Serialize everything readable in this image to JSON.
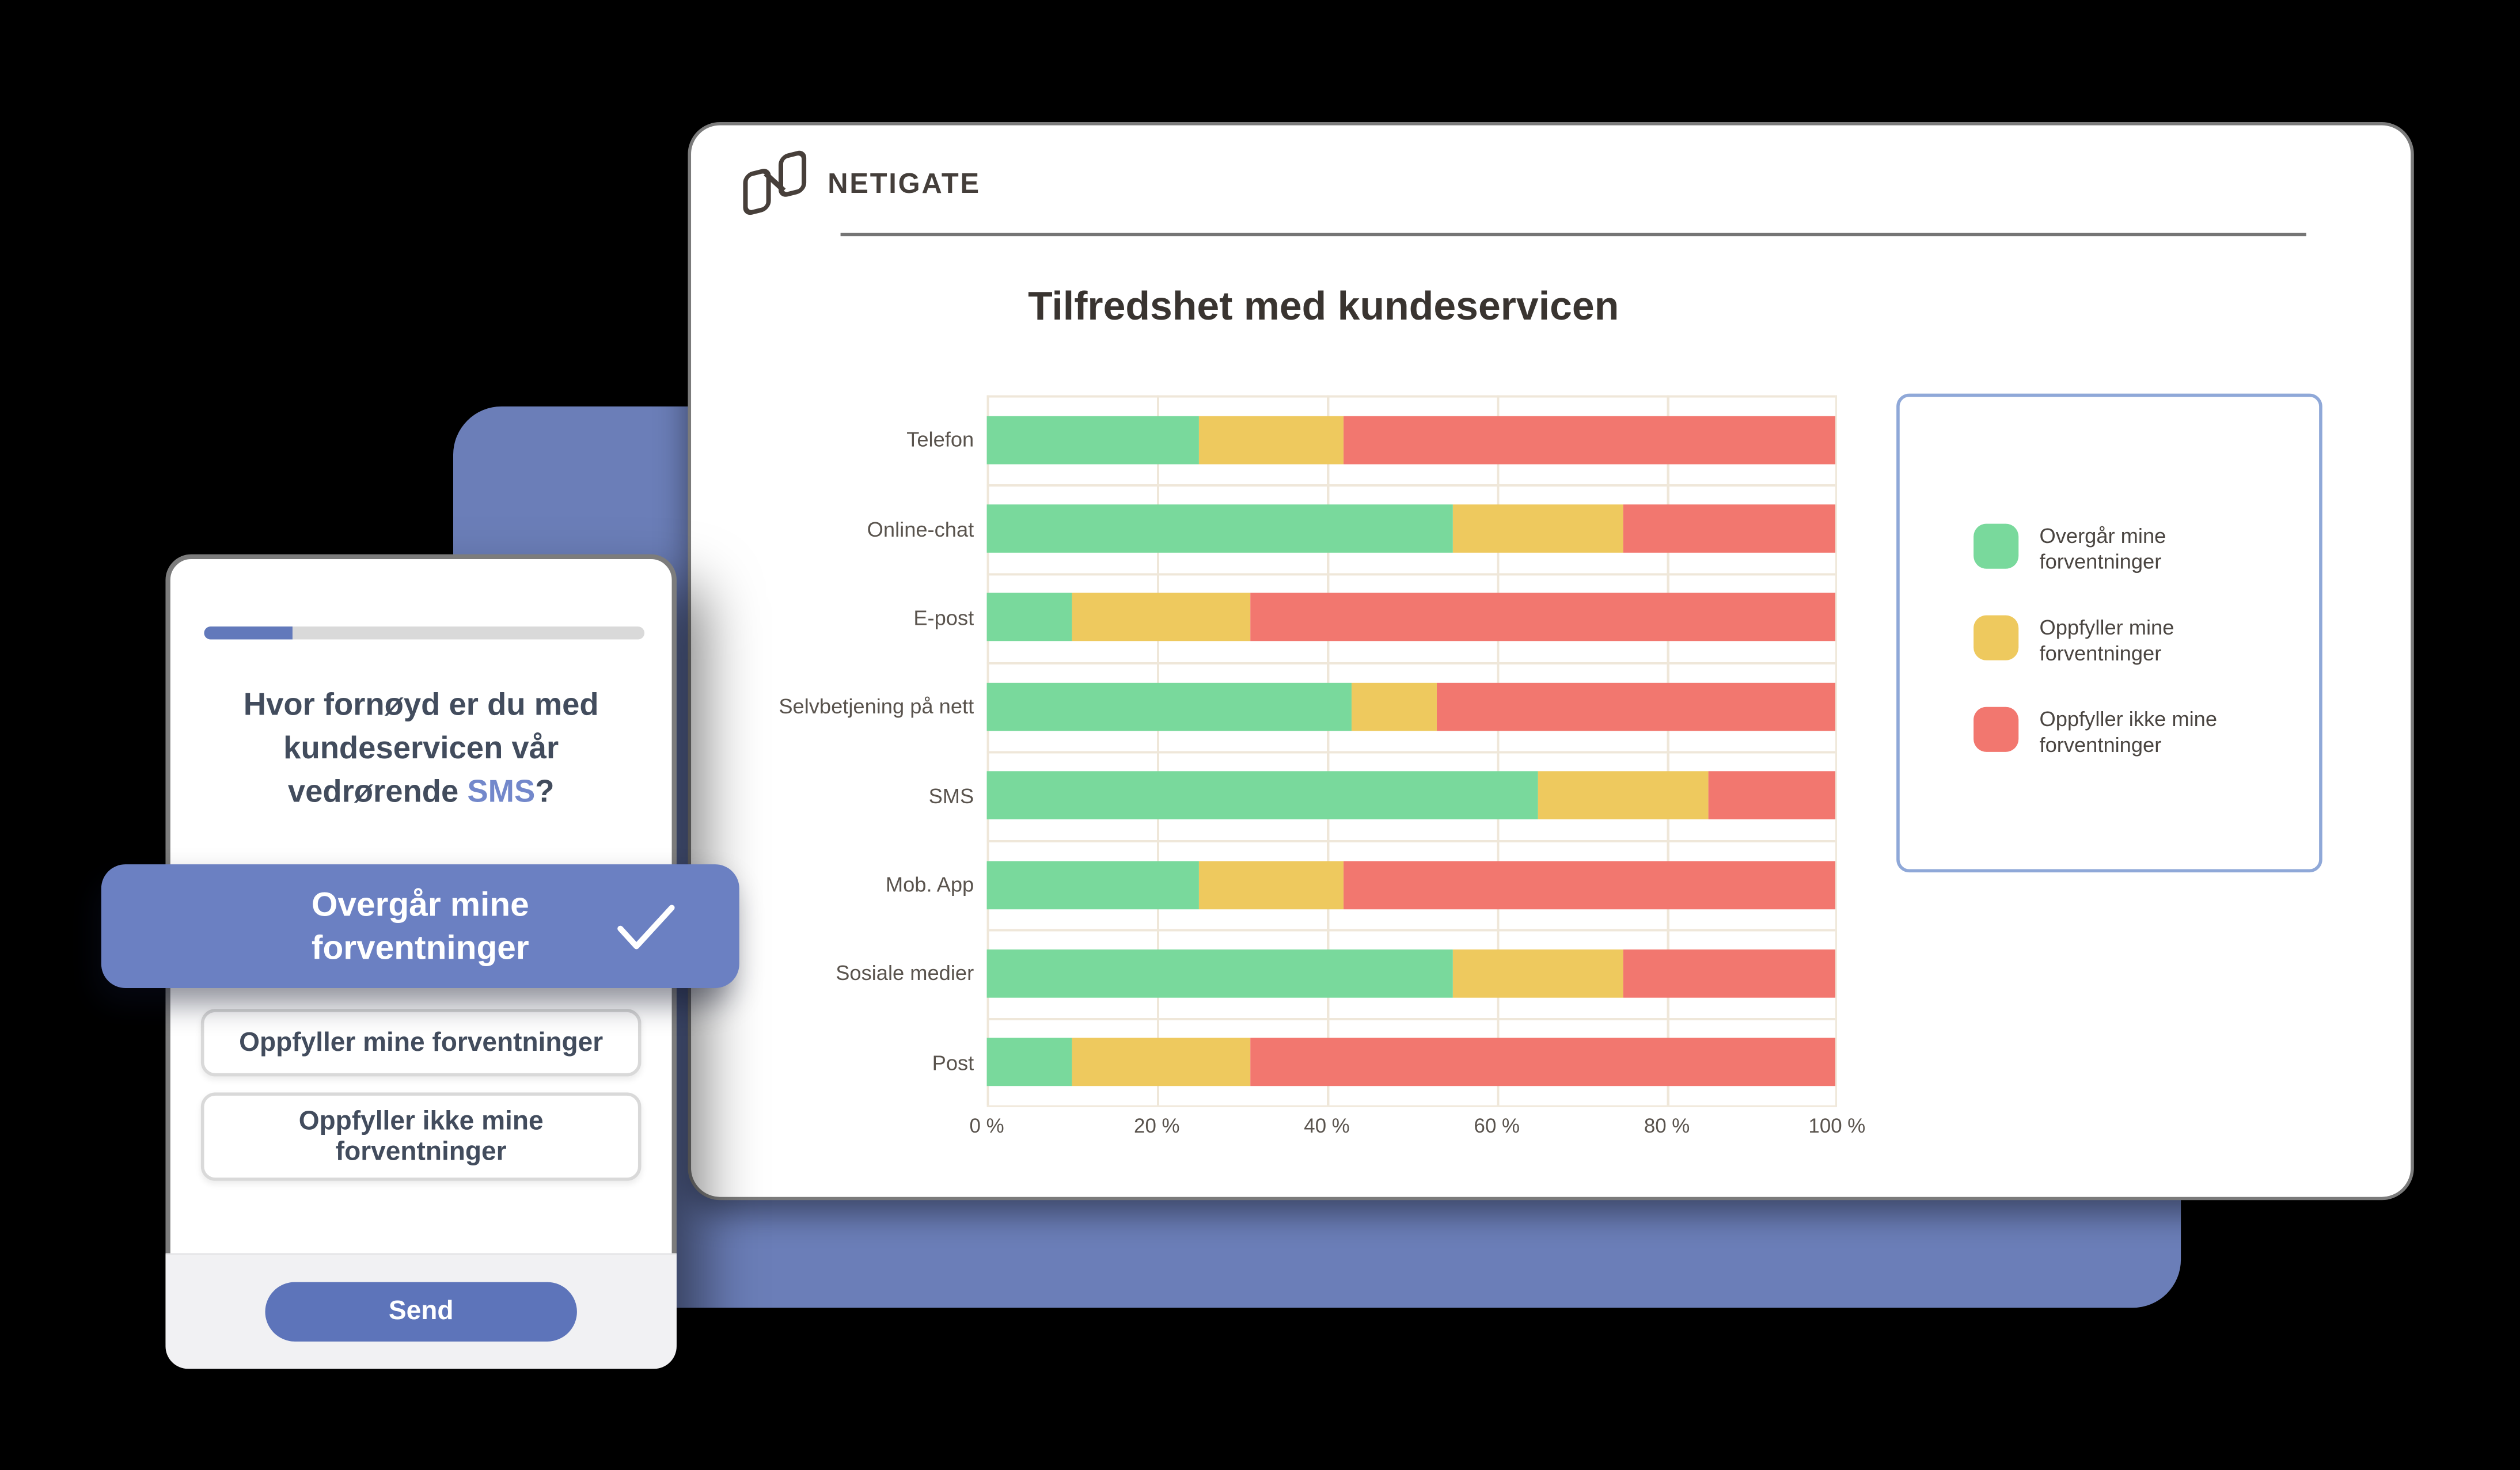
{
  "colors": {
    "backdrop": "#6b7eb8",
    "primary_button": "#6b80c2",
    "send_button": "#5d74ba",
    "progress_fill": "#6279bb",
    "progress_track": "#d9d9d9",
    "highlight_text": "#7388cb",
    "question_text": "#424c5d",
    "title_text": "#393430",
    "brand_text": "#443e3a",
    "axis_text": "#59534d",
    "grid_line": "#efe7d9",
    "legend_border": "#8fa8d8",
    "legend_text": "#4a4541",
    "card_footer": "#f1f1f3",
    "option_border": "#d9d9d9"
  },
  "phone": {
    "progress_percent": 20,
    "question": {
      "line1": "Hvor fornøyd er du med",
      "line2": "kundeservicen vår",
      "line3_prefix": "vedrørende ",
      "highlight": "SMS",
      "suffix": "?"
    },
    "options": [
      {
        "label": "Overgår mine forventninger",
        "selected": true
      },
      {
        "label": "Oppfyller mine forventninger",
        "selected": false
      },
      {
        "label": "Oppfyller ikke mine forventninger",
        "selected": false
      }
    ],
    "send_label": "Send"
  },
  "dashboard": {
    "brand": "NETIGATE",
    "title": "Tilfredshet med kundeservicen"
  },
  "chart_data": {
    "type": "bar",
    "stacked": true,
    "orientation": "horizontal",
    "title": "Tilfredshet med kundeservicen",
    "categories": [
      "Telefon",
      "Online-chat",
      "E-post",
      "Selvbetjening på nett",
      "SMS",
      "Mob. App",
      "Sosiale medier",
      "Post"
    ],
    "series": [
      {
        "name": "Overgår mine forventninger",
        "color": "#79d99c",
        "values": [
          25,
          55,
          10,
          43,
          65,
          25,
          55,
          10
        ]
      },
      {
        "name": "Oppfyller mine forventninger",
        "color": "#eec95e",
        "values": [
          17,
          20,
          21,
          10,
          20,
          17,
          20,
          21
        ]
      },
      {
        "name": "Oppfyller ikke mine forventninger",
        "color": "#f2776f",
        "values": [
          58,
          25,
          69,
          47,
          15,
          58,
          25,
          69
        ]
      }
    ],
    "x_ticks": [
      "0 %",
      "20 %",
      "40 %",
      "60 %",
      "80 %",
      "100 %"
    ],
    "xlim": [
      0,
      100
    ],
    "grid": true,
    "legend_position": "right"
  }
}
